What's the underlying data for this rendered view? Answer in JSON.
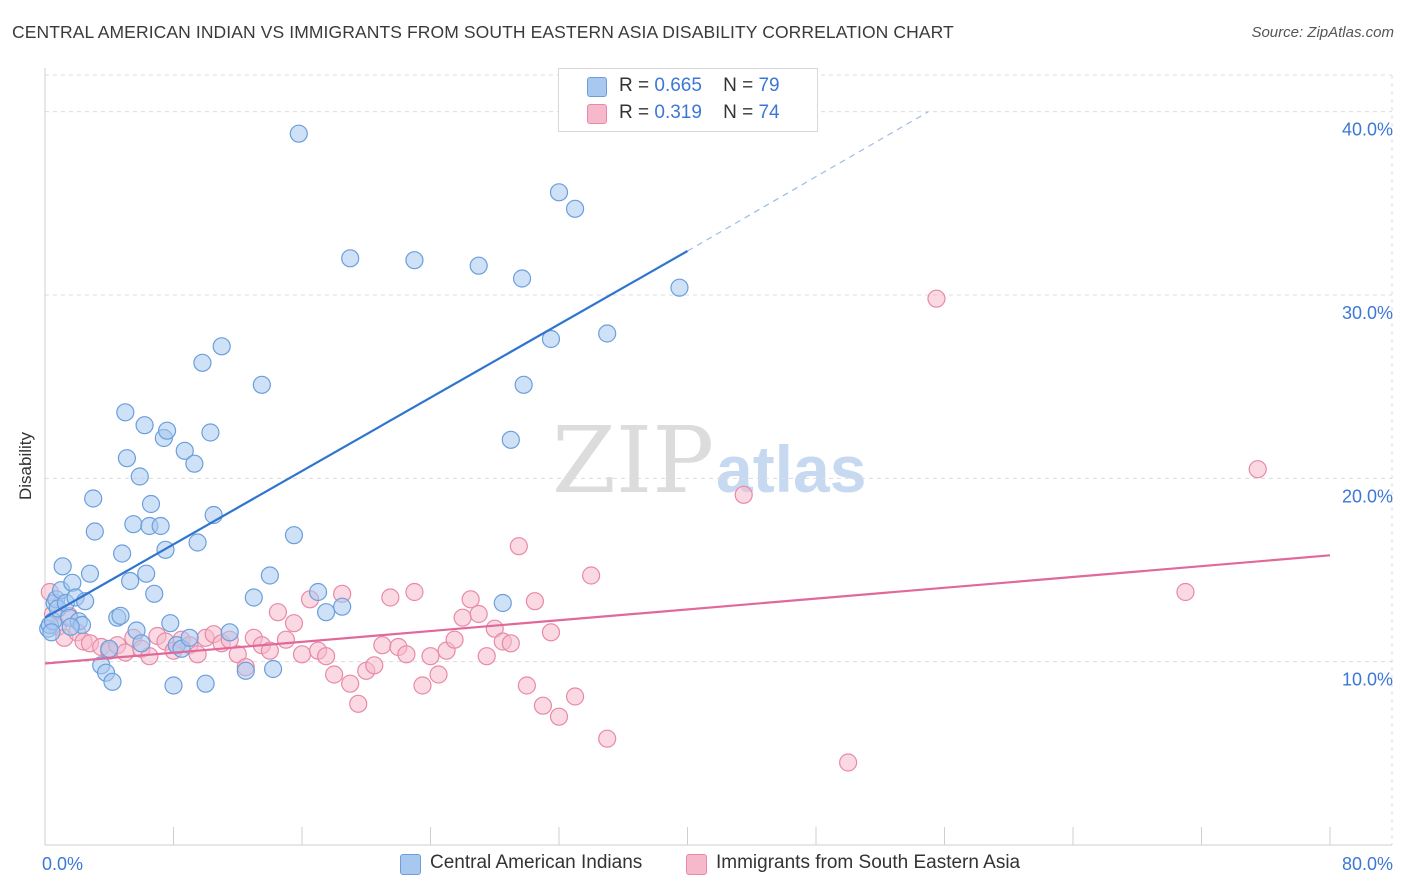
{
  "header": {
    "title": "CENTRAL AMERICAN INDIAN VS IMMIGRANTS FROM SOUTH EASTERN ASIA DISABILITY CORRELATION CHART",
    "source": "Source: ZipAtlas.com"
  },
  "legend_top": {
    "blue": {
      "r_label": "R =",
      "r_value": "0.665",
      "n_label": "N =",
      "n_value": "79"
    },
    "pink": {
      "r_label": "R =",
      "r_value": "0.319",
      "n_label": "N =",
      "n_value": "74"
    }
  },
  "watermark": {
    "part1": "ZIP",
    "part2": "atlas"
  },
  "colors": {
    "blue_fill": "#a8c8f0",
    "blue_stroke": "#6a9fdc",
    "blue_line": "#2f74d0",
    "pink_fill": "#f6b9cc",
    "pink_stroke": "#e889a8",
    "pink_line": "#e0699a",
    "grid": "#dcdcdc",
    "tick_text": "#3b78d6"
  },
  "chart_data": {
    "type": "scatter",
    "title": "CENTRAL AMERICAN INDIAN VS IMMIGRANTS FROM SOUTH EASTERN ASIA DISABILITY CORRELATION CHART",
    "xlabel": "",
    "ylabel": "Disability",
    "xlim": [
      0,
      80
    ],
    "ylim": [
      0,
      42
    ],
    "x_tick_labels": [
      "0.0%",
      "80.0%"
    ],
    "y_ticks": [
      10,
      20,
      30,
      40
    ],
    "y_tick_labels": [
      "10.0%",
      "20.0%",
      "30.0%",
      "40.0%"
    ],
    "grid": true,
    "legend_position": "bottom",
    "series": [
      {
        "name": "Central American Indians",
        "color": "#a8c8f0",
        "stats": {
          "R": 0.665,
          "N": 79
        },
        "trend": {
          "x": [
            0,
            40
          ],
          "y": [
            12.4,
            32.4
          ],
          "dashed_to": {
            "x": [
              40,
              55
            ],
            "y": [
              32.4,
              40.0
            ]
          }
        },
        "points": [
          [
            0.2,
            11.8
          ],
          [
            0.3,
            12.0
          ],
          [
            0.5,
            12.2
          ],
          [
            0.6,
            13.2
          ],
          [
            0.7,
            13.4
          ],
          [
            0.8,
            12.9
          ],
          [
            1.0,
            13.9
          ],
          [
            1.1,
            15.2
          ],
          [
            1.3,
            13.2
          ],
          [
            1.5,
            12.4
          ],
          [
            1.7,
            14.3
          ],
          [
            1.9,
            13.5
          ],
          [
            2.1,
            12.2
          ],
          [
            2.3,
            12.0
          ],
          [
            2.8,
            14.8
          ],
          [
            3.0,
            18.9
          ],
          [
            3.1,
            17.1
          ],
          [
            3.5,
            9.8
          ],
          [
            3.8,
            9.4
          ],
          [
            4.0,
            10.7
          ],
          [
            4.2,
            8.9
          ],
          [
            4.5,
            12.4
          ],
          [
            4.7,
            12.5
          ],
          [
            4.8,
            15.9
          ],
          [
            5.0,
            23.6
          ],
          [
            5.1,
            21.1
          ],
          [
            5.3,
            14.4
          ],
          [
            5.5,
            17.5
          ],
          [
            5.7,
            11.7
          ],
          [
            5.9,
            20.1
          ],
          [
            6.2,
            22.9
          ],
          [
            6.3,
            14.8
          ],
          [
            6.5,
            17.4
          ],
          [
            6.6,
            18.6
          ],
          [
            6.8,
            13.7
          ],
          [
            7.2,
            17.4
          ],
          [
            7.4,
            22.2
          ],
          [
            7.5,
            16.1
          ],
          [
            7.6,
            22.6
          ],
          [
            7.8,
            12.1
          ],
          [
            8.0,
            8.7
          ],
          [
            8.2,
            10.9
          ],
          [
            8.5,
            10.7
          ],
          [
            8.7,
            21.5
          ],
          [
            9.3,
            20.8
          ],
          [
            9.5,
            16.5
          ],
          [
            9.8,
            26.3
          ],
          [
            10.0,
            8.8
          ],
          [
            10.3,
            22.5
          ],
          [
            10.5,
            18.0
          ],
          [
            11.0,
            27.2
          ],
          [
            11.5,
            11.6
          ],
          [
            12.5,
            9.5
          ],
          [
            13.0,
            13.5
          ],
          [
            13.5,
            25.1
          ],
          [
            14.0,
            14.7
          ],
          [
            14.2,
            9.6
          ],
          [
            15.5,
            16.9
          ],
          [
            15.8,
            38.8
          ],
          [
            17.0,
            13.8
          ],
          [
            17.5,
            12.7
          ],
          [
            18.5,
            13.0
          ],
          [
            19.0,
            32.0
          ],
          [
            23.0,
            31.9
          ],
          [
            27.0,
            31.6
          ],
          [
            28.5,
            13.2
          ],
          [
            29.0,
            22.1
          ],
          [
            29.7,
            30.9
          ],
          [
            29.8,
            25.1
          ],
          [
            31.5,
            27.6
          ],
          [
            32.0,
            35.6
          ],
          [
            33.0,
            34.7
          ],
          [
            35.0,
            27.9
          ],
          [
            39.5,
            30.4
          ],
          [
            0.4,
            11.6
          ],
          [
            1.6,
            11.9
          ],
          [
            2.5,
            13.3
          ],
          [
            6.0,
            11.0
          ],
          [
            9.0,
            11.3
          ]
        ]
      },
      {
        "name": "Immigrants from South Eastern Asia",
        "color": "#f6b9cc",
        "stats": {
          "R": 0.319,
          "N": 74
        },
        "trend": {
          "x": [
            0,
            80
          ],
          "y": [
            9.9,
            15.8
          ]
        },
        "points": [
          [
            0.3,
            13.8
          ],
          [
            0.5,
            12.6
          ],
          [
            0.8,
            11.9
          ],
          [
            1.2,
            11.3
          ],
          [
            1.5,
            12.5
          ],
          [
            2.0,
            11.6
          ],
          [
            2.4,
            11.1
          ],
          [
            2.8,
            11.0
          ],
          [
            3.5,
            10.8
          ],
          [
            4.0,
            10.6
          ],
          [
            4.5,
            10.9
          ],
          [
            5.0,
            10.5
          ],
          [
            5.5,
            11.3
          ],
          [
            6.0,
            10.7
          ],
          [
            6.5,
            10.3
          ],
          [
            7.0,
            11.4
          ],
          [
            7.5,
            11.1
          ],
          [
            8.0,
            10.6
          ],
          [
            8.5,
            11.2
          ],
          [
            9.0,
            10.9
          ],
          [
            9.5,
            10.4
          ],
          [
            10.0,
            11.3
          ],
          [
            10.5,
            11.5
          ],
          [
            11.0,
            11.0
          ],
          [
            11.5,
            11.2
          ],
          [
            12.0,
            10.4
          ],
          [
            12.5,
            9.7
          ],
          [
            13.0,
            11.3
          ],
          [
            13.5,
            10.9
          ],
          [
            14.0,
            10.6
          ],
          [
            14.5,
            12.7
          ],
          [
            15.0,
            11.2
          ],
          [
            15.5,
            12.1
          ],
          [
            16.0,
            10.4
          ],
          [
            16.5,
            13.4
          ],
          [
            17.0,
            10.6
          ],
          [
            17.5,
            10.3
          ],
          [
            18.0,
            9.3
          ],
          [
            18.5,
            13.7
          ],
          [
            19.0,
            8.8
          ],
          [
            19.5,
            7.7
          ],
          [
            20.0,
            9.5
          ],
          [
            20.5,
            9.8
          ],
          [
            21.0,
            10.9
          ],
          [
            21.5,
            13.5
          ],
          [
            22.0,
            10.8
          ],
          [
            22.5,
            10.4
          ],
          [
            23.0,
            13.8
          ],
          [
            23.5,
            8.7
          ],
          [
            24.0,
            10.3
          ],
          [
            24.5,
            9.3
          ],
          [
            25.0,
            10.6
          ],
          [
            25.5,
            11.2
          ],
          [
            26.0,
            12.4
          ],
          [
            26.5,
            13.4
          ],
          [
            27.0,
            12.6
          ],
          [
            27.5,
            10.3
          ],
          [
            28.0,
            11.8
          ],
          [
            28.5,
            11.1
          ],
          [
            29.0,
            11.0
          ],
          [
            29.5,
            16.3
          ],
          [
            30.0,
            8.7
          ],
          [
            30.5,
            13.3
          ],
          [
            31.0,
            7.6
          ],
          [
            31.5,
            11.6
          ],
          [
            32.0,
            7.0
          ],
          [
            33.0,
            8.1
          ],
          [
            34.0,
            14.7
          ],
          [
            35.0,
            5.8
          ],
          [
            43.5,
            19.1
          ],
          [
            50.0,
            4.5
          ],
          [
            55.5,
            29.8
          ],
          [
            71.0,
            13.8
          ],
          [
            75.5,
            20.5
          ]
        ]
      }
    ]
  },
  "legend_bottom": {
    "blue_label": "Central American Indians",
    "pink_label": "Immigrants from South Eastern Asia"
  }
}
